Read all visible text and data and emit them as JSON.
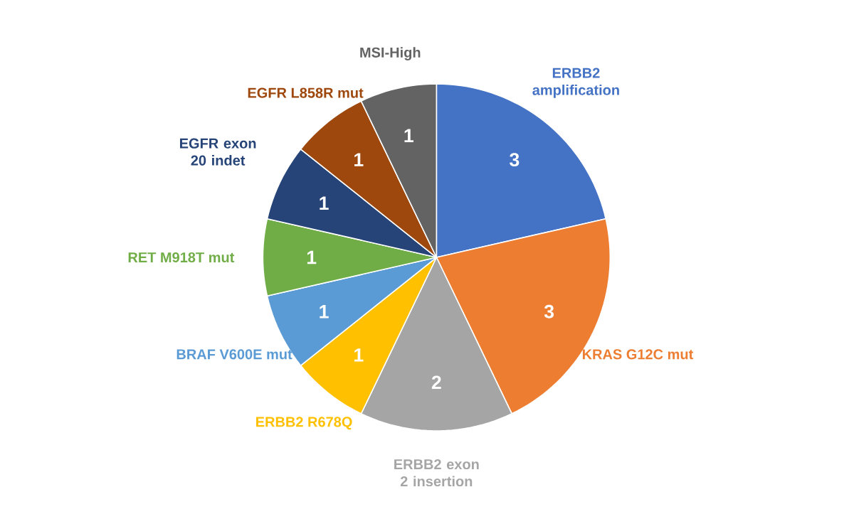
{
  "chart_data": {
    "type": "pie",
    "categories": [
      "ERBB2 amplification",
      "KRAS G12C mut",
      "ERBB2 exon 2 insertion",
      "ERBB2 R678Q",
      "BRAF V600E mut",
      "RET M918T mut",
      "EGFR exon 20 indet",
      "EGFR L858R mut",
      "MSI-High"
    ],
    "values": [
      3,
      3,
      2,
      1,
      1,
      1,
      1,
      1,
      1
    ],
    "colors": [
      "#4472c4",
      "#ed7d31",
      "#a5a5a5",
      "#ffc000",
      "#5b9bd5",
      "#70ad47",
      "#264478",
      "#9e480e",
      "#636363"
    ],
    "data_labels": true
  }
}
